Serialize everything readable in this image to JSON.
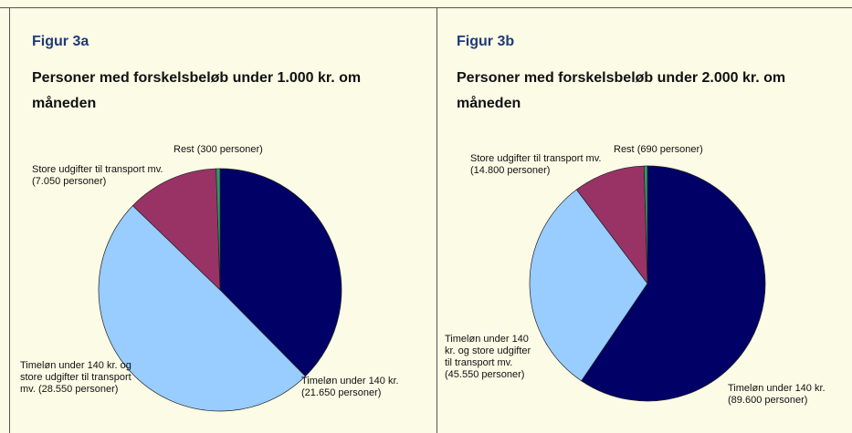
{
  "chart_data": [
    {
      "type": "pie",
      "title": "Figur 3a",
      "subtitle": "Personer med forskelsbeløb under 1.000 kr. om måneden",
      "categories": [
        "Timeløn under 140 kr.",
        "Timeløn under 140 kr. og store udgifter til transport mv.",
        "Store udgifter til transport mv.",
        "Rest"
      ],
      "values": [
        21650,
        28550,
        7050,
        300
      ],
      "value_labels": [
        "(21.650 personer)",
        "(28.550 personer)",
        "(7.050 personer)",
        "(300 personer)"
      ],
      "colors": [
        "#000066",
        "#99ccff",
        "#993366",
        "#339966"
      ]
    },
    {
      "type": "pie",
      "title": "Figur 3b",
      "subtitle": "Personer med forskelsbeløb under 2.000 kr. om måneden",
      "categories": [
        "Timeløn under 140 kr.",
        "Timeløn under 140 kr. og store udgifter til transport mv.",
        "Store udgifter til transport mv.",
        "Rest"
      ],
      "values": [
        89600,
        45550,
        14800,
        690
      ],
      "value_labels": [
        "(89.600 personer)",
        "(45.550 personer)",
        "(14.800 personer)",
        "(690 personer)"
      ],
      "colors": [
        "#000066",
        "#99ccff",
        "#993366",
        "#339966"
      ]
    }
  ]
}
